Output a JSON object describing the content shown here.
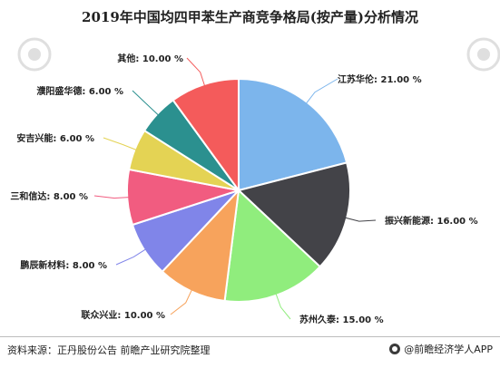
{
  "title": "2019年中国均四甲苯生产商竞争格局(按产量)分析情况",
  "footer": {
    "source": "资料来源：正丹股份公告 前瞻产业研究院整理",
    "brand": "@前瞻经济学人APP"
  },
  "chart_data": {
    "type": "pie",
    "slices": [
      {
        "label": "江苏华伦",
        "value": 21.0,
        "display": "江苏华伦: 21.00 %",
        "color": "#7cb5ec"
      },
      {
        "label": "振兴新能源",
        "value": 16.0,
        "display": "振兴新能源: 16.00 %",
        "color": "#434348"
      },
      {
        "label": "苏州久泰",
        "value": 15.0,
        "display": "苏州久泰: 15.00 %",
        "color": "#90ed7d"
      },
      {
        "label": "联众兴业",
        "value": 10.0,
        "display": "联众兴业: 10.00 %",
        "color": "#f7a35c"
      },
      {
        "label": "鹏辰新材料",
        "value": 8.0,
        "display": "鹏辰新材料: 8.00 %",
        "color": "#8085e9"
      },
      {
        "label": "三和信达",
        "value": 8.0,
        "display": "三和信达: 8.00 %",
        "color": "#f15c80"
      },
      {
        "label": "安吉兴能",
        "value": 6.0,
        "display": "安吉兴能: 6.00 %",
        "color": "#e4d354"
      },
      {
        "label": "濮阳盛华德",
        "value": 6.0,
        "display": "濮阳盛华德: 6.00 %",
        "color": "#2b908f"
      },
      {
        "label": "其他",
        "value": 10.0,
        "display": "其他: 10.00 %",
        "color": "#f45b5b"
      }
    ]
  }
}
